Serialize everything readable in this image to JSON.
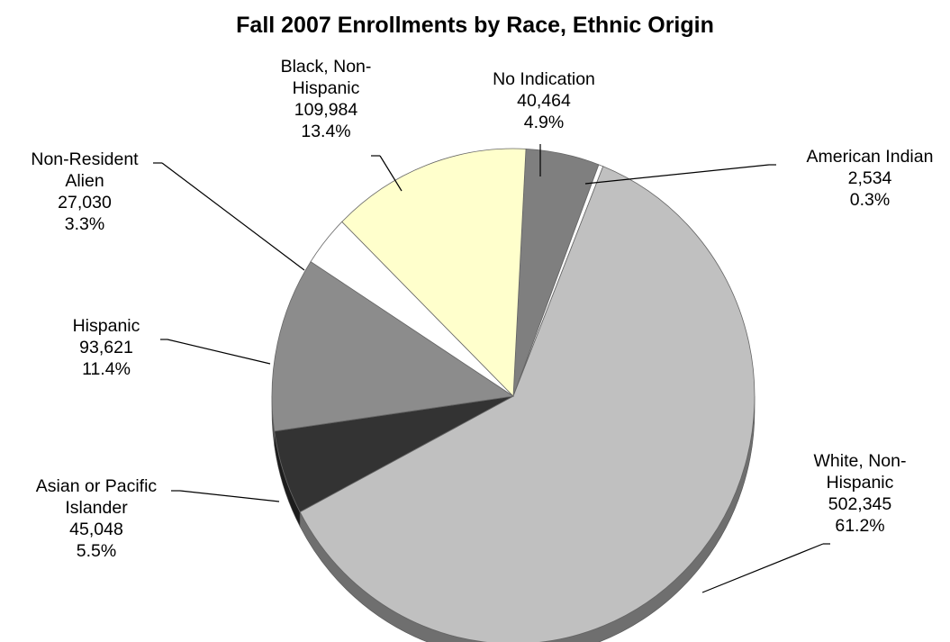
{
  "chart_data": {
    "type": "pie",
    "title": "Fall 2007 Enrollments by Race, Ethnic Origin",
    "slices": [
      {
        "label": "No Indication",
        "value": 40464,
        "percent": "4.9%",
        "value_text": "40,464",
        "color": "#7f7f7f"
      },
      {
        "label": "American Indian",
        "value": 2534,
        "percent": "0.3%",
        "value_text": "2,534",
        "color": "#ffffff"
      },
      {
        "label": "White, Non-Hispanic",
        "value": 502345,
        "percent": "61.2%",
        "value_text": "502,345",
        "color": "#c0c0c0"
      },
      {
        "label": "Asian or Pacific Islander",
        "value": 45048,
        "percent": "5.5%",
        "value_text": "45,048",
        "color": "#333333"
      },
      {
        "label": "Hispanic",
        "value": 93621,
        "percent": "11.4%",
        "value_text": "93,621",
        "color": "#8c8c8c"
      },
      {
        "label": "Non-Resident Alien",
        "value": 27030,
        "percent": "3.3%",
        "value_text": "27,030",
        "color": "#ffffff"
      },
      {
        "label": "Black, Non-Hispanic",
        "value": 109984,
        "percent": "13.4%",
        "value_text": "109,984",
        "color": "#ffffcc"
      }
    ],
    "label_lines": [
      [
        "No Indication"
      ],
      [
        "American Indian"
      ],
      [
        "White, Non-",
        "Hispanic"
      ],
      [
        "Asian or Pacific",
        "Islander"
      ],
      [
        "Hispanic"
      ],
      [
        "Non-Resident",
        "Alien"
      ],
      [
        "Black, Non-",
        "Hispanic"
      ]
    ]
  }
}
